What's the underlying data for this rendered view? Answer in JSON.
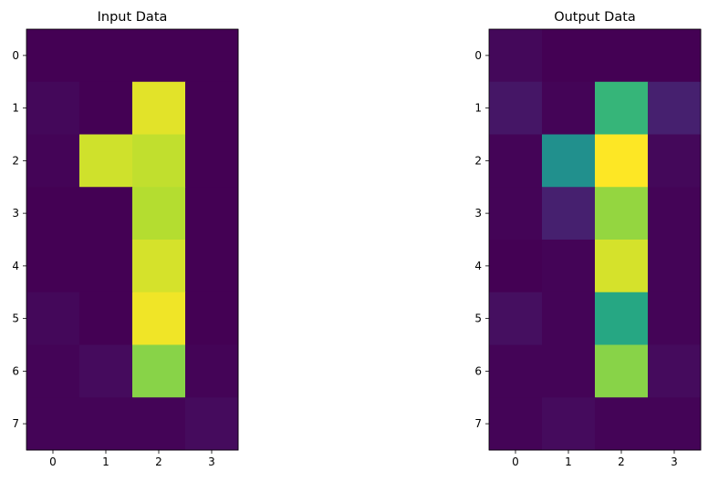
{
  "chart_data": [
    {
      "type": "heatmap",
      "title": "Input Data",
      "xlabel": "",
      "ylabel": "",
      "colormap": "viridis",
      "x_ticks": [
        "0",
        "1",
        "2",
        "3"
      ],
      "y_ticks": [
        "0",
        "1",
        "2",
        "3",
        "4",
        "5",
        "6",
        "7"
      ],
      "values": [
        [
          0.0,
          0.0,
          0.0,
          0.0
        ],
        [
          0.02,
          0.0,
          0.96,
          0.0
        ],
        [
          0.01,
          0.93,
          0.91,
          0.0
        ],
        [
          0.0,
          0.0,
          0.89,
          0.0
        ],
        [
          0.0,
          0.0,
          0.94,
          0.0
        ],
        [
          0.02,
          0.0,
          0.98,
          0.0
        ],
        [
          0.01,
          0.03,
          0.82,
          0.01
        ],
        [
          0.01,
          0.01,
          0.01,
          0.03
        ]
      ]
    },
    {
      "type": "heatmap",
      "title": "Output Data",
      "xlabel": "",
      "ylabel": "",
      "colormap": "viridis",
      "x_ticks": [
        "0",
        "1",
        "2",
        "3"
      ],
      "y_ticks": [
        "0",
        "1",
        "2",
        "3",
        "4",
        "5",
        "6",
        "7"
      ],
      "values": [
        [
          0.02,
          0.0,
          0.0,
          0.0
        ],
        [
          0.06,
          0.01,
          0.66,
          0.09
        ],
        [
          0.01,
          0.5,
          1.0,
          0.02
        ],
        [
          0.01,
          0.09,
          0.84,
          0.01
        ],
        [
          0.0,
          0.01,
          0.94,
          0.01
        ],
        [
          0.04,
          0.01,
          0.6,
          0.01
        ],
        [
          0.01,
          0.01,
          0.82,
          0.03
        ],
        [
          0.01,
          0.03,
          0.01,
          0.01
        ]
      ]
    }
  ]
}
